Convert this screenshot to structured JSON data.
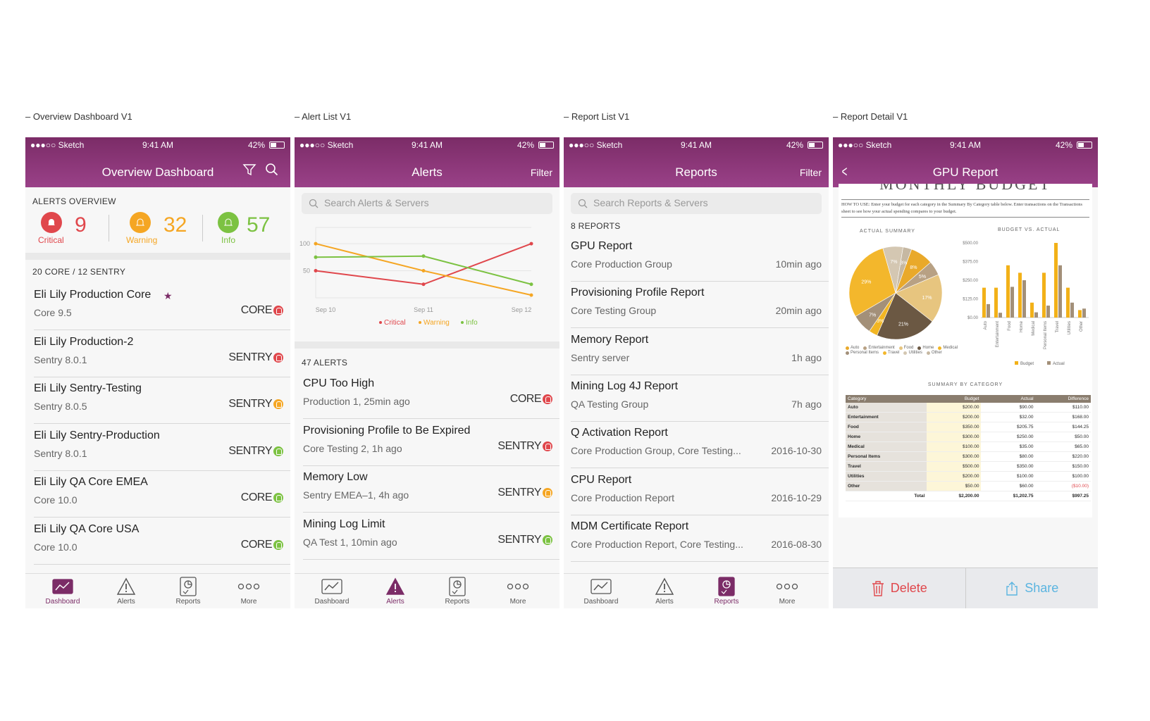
{
  "captions": [
    "– Overview Dashboard V1",
    "– Alert List V1",
    "– Report List V1",
    "– Report Detail V1"
  ],
  "status": {
    "carrier": "●●●○○ Sketch",
    "time": "9:41 AM",
    "battery": "42%"
  },
  "tabs": [
    "Dashboard",
    "Alerts",
    "Reports",
    "More"
  ],
  "colors": {
    "brand": "#7b2c67",
    "critical": "#e0474c",
    "warning": "#f5a623",
    "info": "#7cc242"
  },
  "s1": {
    "title": "Overview Dashboard",
    "alerts_overview": "ALERTS OVERVIEW",
    "critical": {
      "count": "9",
      "label": "Critical"
    },
    "warning": {
      "count": "32",
      "label": "Warning"
    },
    "info": {
      "count": "57",
      "label": "Info"
    },
    "section": "20 CORE / 12 SENTRY",
    "items": [
      {
        "name": "Eli Lily Production Core",
        "sub": "Core 9.5",
        "tag": "CORE",
        "level": "critical"
      },
      {
        "name": "Eli Lily Production-2",
        "sub": "Sentry 8.0.1",
        "tag": "SENTRY",
        "level": "critical"
      },
      {
        "name": "Eli Lily Sentry-Testing",
        "sub": "Sentry 8.0.5",
        "tag": "SENTRY",
        "level": "warning"
      },
      {
        "name": "Eli Lily Sentry-Production",
        "sub": "Sentry 8.0.1",
        "tag": "SENTRY",
        "level": "info"
      },
      {
        "name": "Eli Lily QA Core EMEA",
        "sub": "Core 10.0",
        "tag": "CORE",
        "level": "info"
      },
      {
        "name": "Eli Lily QA Core USA",
        "sub": "Core 10.0",
        "tag": "CORE",
        "level": "info"
      }
    ]
  },
  "s2": {
    "title": "Alerts",
    "filter": "Filter",
    "search": "Search Alerts & Servers",
    "count": "47 ALERTS",
    "items": [
      {
        "name": "CPU Too High",
        "sub": "Production 1, 25min ago",
        "tag": "CORE",
        "level": "critical"
      },
      {
        "name": "Provisioning Profile to Be Expired",
        "sub": "Core Testing 2, 1h ago",
        "tag": "SENTRY",
        "level": "critical"
      },
      {
        "name": "Memory Low",
        "sub": "Sentry EMEA–1, 4h ago",
        "tag": "SENTRY",
        "level": "warning"
      },
      {
        "name": "Mining Log Limit",
        "sub": "QA Test 1, 10min ago",
        "tag": "SENTRY",
        "level": "info"
      }
    ]
  },
  "chart_data": {
    "type": "line",
    "x": [
      "Sep 10",
      "Sep 11",
      "Sep 12"
    ],
    "yticks": [
      "100",
      "50"
    ],
    "ylim": [
      0,
      130
    ],
    "series": [
      {
        "name": "Critical",
        "color": "#e0474c",
        "values": [
          50,
          25,
          100
        ]
      },
      {
        "name": "Warning",
        "color": "#f5a623",
        "values": [
          100,
          50,
          5
        ]
      },
      {
        "name": "Info",
        "color": "#7cc242",
        "values": [
          75,
          77,
          25
        ]
      }
    ]
  },
  "s3": {
    "title": "Reports",
    "filter": "Filter",
    "search": "Search Reports & Servers",
    "count": "8 REPORTS",
    "items": [
      {
        "name": "GPU Report",
        "sub": "Core Production Group",
        "time": "10min ago"
      },
      {
        "name": "Provisioning Profile Report",
        "sub": "Core Testing Group",
        "time": "20min ago"
      },
      {
        "name": "Memory Report",
        "sub": "Sentry server",
        "time": "1h ago"
      },
      {
        "name": "Mining Log 4J Report",
        "sub": "QA Testing Group",
        "time": "7h ago"
      },
      {
        "name": "Q Activation Report",
        "sub": "Core Production Group, Core Testing...",
        "time": "2016-10-30"
      },
      {
        "name": "CPU Report",
        "sub": "Core Production Report",
        "time": "2016-10-29"
      },
      {
        "name": "MDM Certificate Report",
        "sub": "Core Production Report, Core Testing...",
        "time": "2016-08-30"
      }
    ]
  },
  "s4": {
    "title": "GPU Report",
    "doc_title": "MONTHLY BUDGET",
    "howto": "HOW TO USE: Enter your budget for each category in the Summary By Category table below. Enter transactions on the Transactions sheet to see how your actual spending compares to your budget.",
    "actual_summary": "ACTUAL SUMMARY",
    "budget_vs_actual": "BUDGET VS. ACTUAL",
    "summary_by_category": "SUMMARY BY CATEGORY",
    "pie": {
      "labels": [
        "Auto",
        "Entertainment",
        "Food",
        "Home",
        "Medical",
        "Personal Items",
        "Travel",
        "Utilities",
        "Other"
      ],
      "values": [
        8,
        5,
        17,
        21,
        3,
        7,
        29,
        7,
        3
      ],
      "colors": [
        "#e9a92a",
        "#b8a184",
        "#e7c57f",
        "#6b5843",
        "#f2b623",
        "#a39079",
        "#f3b72c",
        "#d4c7b2",
        "#c6b8a2"
      ]
    },
    "bar": {
      "yticks": [
        "$500.00",
        "$375.00",
        "$250.00",
        "$125.00",
        "$0.00"
      ],
      "budget": [
        200,
        200,
        350,
        300,
        100,
        300,
        500,
        200,
        50
      ],
      "actual": [
        90,
        32,
        205.75,
        250,
        35,
        80,
        350,
        100,
        60
      ],
      "legend": [
        "Budget",
        "Actual"
      ]
    },
    "table": {
      "head": [
        "Category",
        "Budget",
        "Actual",
        "Difference"
      ],
      "rows": [
        [
          "Auto",
          "$200.00",
          "$90.00",
          "$110.00"
        ],
        [
          "Entertainment",
          "$200.00",
          "$32.00",
          "$168.00"
        ],
        [
          "Food",
          "$350.00",
          "$205.75",
          "$144.25"
        ],
        [
          "Home",
          "$300.00",
          "$250.00",
          "$50.00"
        ],
        [
          "Medical",
          "$100.00",
          "$35.00",
          "$65.00"
        ],
        [
          "Personal Items",
          "$300.00",
          "$80.00",
          "$220.00"
        ],
        [
          "Travel",
          "$500.00",
          "$350.00",
          "$150.00"
        ],
        [
          "Utilities",
          "$200.00",
          "$100.00",
          "$100.00"
        ],
        [
          "Other",
          "$50.00",
          "$60.00",
          "($10.00)"
        ]
      ],
      "total": [
        "Total",
        "$2,200.00",
        "$1,202.75",
        "$997.25"
      ]
    },
    "delete": "Delete",
    "share": "Share"
  }
}
